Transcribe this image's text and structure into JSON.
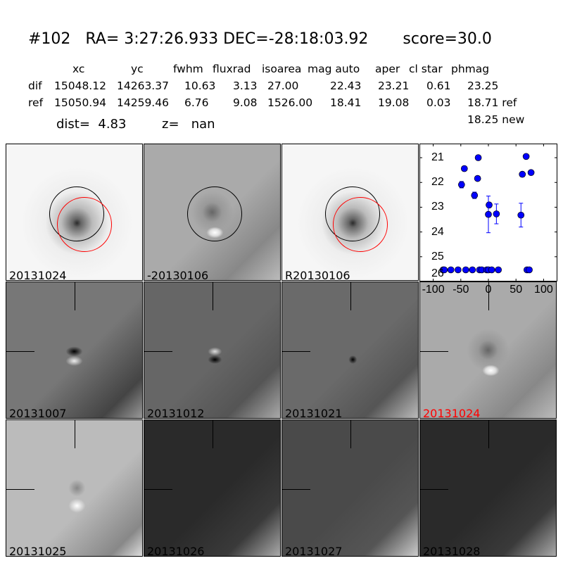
{
  "header": {
    "title": "#102   RA= 3:27:26.933 DEC=-28:18:03.92       score=30.0",
    "columns": [
      "xc",
      "yc",
      "fwhm",
      "fluxrad",
      "isoarea",
      "mag auto",
      "aper",
      "cl star",
      "phmag"
    ],
    "rows": [
      {
        "label": "dif",
        "values": [
          "15048.12",
          "14263.37",
          "10.63",
          "3.13",
          "27.00",
          "22.43",
          "23.21",
          "0.61",
          "23.25"
        ]
      },
      {
        "label": "ref",
        "values": [
          "15050.94",
          "14259.46",
          "6.76",
          "9.08",
          "1526.00",
          "18.41",
          "19.08",
          "0.03",
          "18.71 ref"
        ]
      }
    ],
    "new_mag": "18.25 new",
    "dist": "dist=  4.83",
    "z": "z=   nan"
  },
  "panels": [
    {
      "label": "20131024",
      "color": "#000000",
      "style": "ref"
    },
    {
      "label": "-20130106",
      "color": "#000000",
      "style": "diff"
    },
    {
      "label": "R20130106",
      "color": "#000000",
      "style": "ref"
    },
    {
      "label": "20131007",
      "color": "#000000",
      "style": "dark1"
    },
    {
      "label": "20131012",
      "color": "#000000",
      "style": "dark2"
    },
    {
      "label": "20131021",
      "color": "#000000",
      "style": "dark3"
    },
    {
      "label": "20131024",
      "color": "#ff0000",
      "style": "diff"
    },
    {
      "label": "20131025",
      "color": "#000000",
      "style": "light"
    },
    {
      "label": "20131026",
      "color": "#000000",
      "style": "vdark"
    },
    {
      "label": "20131027",
      "color": "#000000",
      "style": "dark4"
    },
    {
      "label": "20131028",
      "color": "#000000",
      "style": "vdark"
    }
  ],
  "chart_data": {
    "type": "scatter",
    "xlim": [
      -125,
      125
    ],
    "ylim": [
      26,
      20.43
    ],
    "y_inverted": true,
    "xticks": [
      "-100",
      "-50",
      "0",
      "50",
      "100"
    ],
    "xtick_values": [
      -100,
      -50,
      0,
      50,
      100
    ],
    "yticks": [
      "21",
      "22",
      "23",
      "24",
      "25",
      "26"
    ],
    "ytick_values": [
      21,
      22,
      23,
      24,
      25,
      26
    ],
    "marker_color": "#0000ff",
    "points": [
      {
        "x": -48.7,
        "y": 22.09,
        "err": 0.13
      },
      {
        "x": -43.6,
        "y": 21.44,
        "err": 0
      },
      {
        "x": -18.4,
        "y": 21.0,
        "err": 0
      },
      {
        "x": -19.6,
        "y": 21.84,
        "err": 0
      },
      {
        "x": -25.2,
        "y": 22.52,
        "err": 0.13
      },
      {
        "x": 1.3,
        "y": 22.91,
        "err": 0.1
      },
      {
        "x": 0,
        "y": 23.29,
        "err": 0.74
      },
      {
        "x": 14.5,
        "y": 23.27,
        "err": 0.4
      },
      {
        "x": 59,
        "y": 23.32,
        "err": 0.48
      },
      {
        "x": 68.4,
        "y": 20.95,
        "err": 0
      },
      {
        "x": 61.5,
        "y": 21.67,
        "err": 0
      },
      {
        "x": 77.3,
        "y": 21.6,
        "err": 0
      },
      {
        "x": -82,
        "y": 25.53,
        "err": 0.05
      },
      {
        "x": -80,
        "y": 25.53,
        "err": 0.05
      },
      {
        "x": -68,
        "y": 25.53,
        "err": 0.05
      },
      {
        "x": -55,
        "y": 25.53,
        "err": 0.05
      },
      {
        "x": -41,
        "y": 25.53,
        "err": 0.05
      },
      {
        "x": -29,
        "y": 25.53,
        "err": 0.05
      },
      {
        "x": -16,
        "y": 25.53,
        "err": 0.05
      },
      {
        "x": -12,
        "y": 25.53,
        "err": 0.05
      },
      {
        "x": -3,
        "y": 25.53,
        "err": 0.05
      },
      {
        "x": 0,
        "y": 25.53,
        "err": 0.05
      },
      {
        "x": 6,
        "y": 25.53,
        "err": 0.05
      },
      {
        "x": 18,
        "y": 25.53,
        "err": 0.05
      },
      {
        "x": 70,
        "y": 25.53,
        "err": 0.05
      },
      {
        "x": 74,
        "y": 25.53,
        "err": 0.05
      }
    ]
  }
}
